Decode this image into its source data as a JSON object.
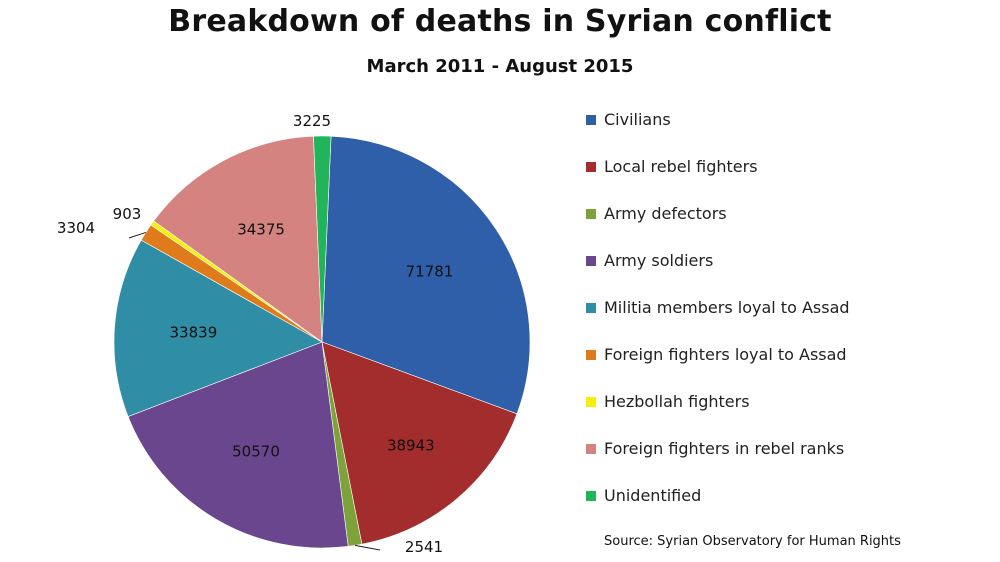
{
  "chart_data": {
    "type": "pie",
    "title": "Breakdown of deaths in Syrian conflict",
    "subtitle": "March 2011 - August 2015",
    "series": [
      {
        "name": "Civilians",
        "value": 71781,
        "color": "#2e5fa8"
      },
      {
        "name": "Local rebel fighters",
        "value": 38943,
        "color": "#a32c2c"
      },
      {
        "name": "Army defectors",
        "value": 2541,
        "color": "#7ea23a"
      },
      {
        "name": "Army soldiers",
        "value": 50570,
        "color": "#6a468f"
      },
      {
        "name": "Militia members loyal to Assad",
        "value": 33839,
        "color": "#2f8da6"
      },
      {
        "name": "Foreign fighters loyal to Assad",
        "value": 3304,
        "color": "#e07b1c"
      },
      {
        "name": "Hezbollah fighters",
        "value": 903,
        "color": "#f5ef0a"
      },
      {
        "name": "Foreign fighters in rebel ranks",
        "value": 34375,
        "color": "#d48380"
      },
      {
        "name": "Unidentified",
        "value": 3225,
        "color": "#21b45a"
      }
    ],
    "legend_position": "right"
  },
  "source": "Source: Syrian Observatory for Human Rights"
}
